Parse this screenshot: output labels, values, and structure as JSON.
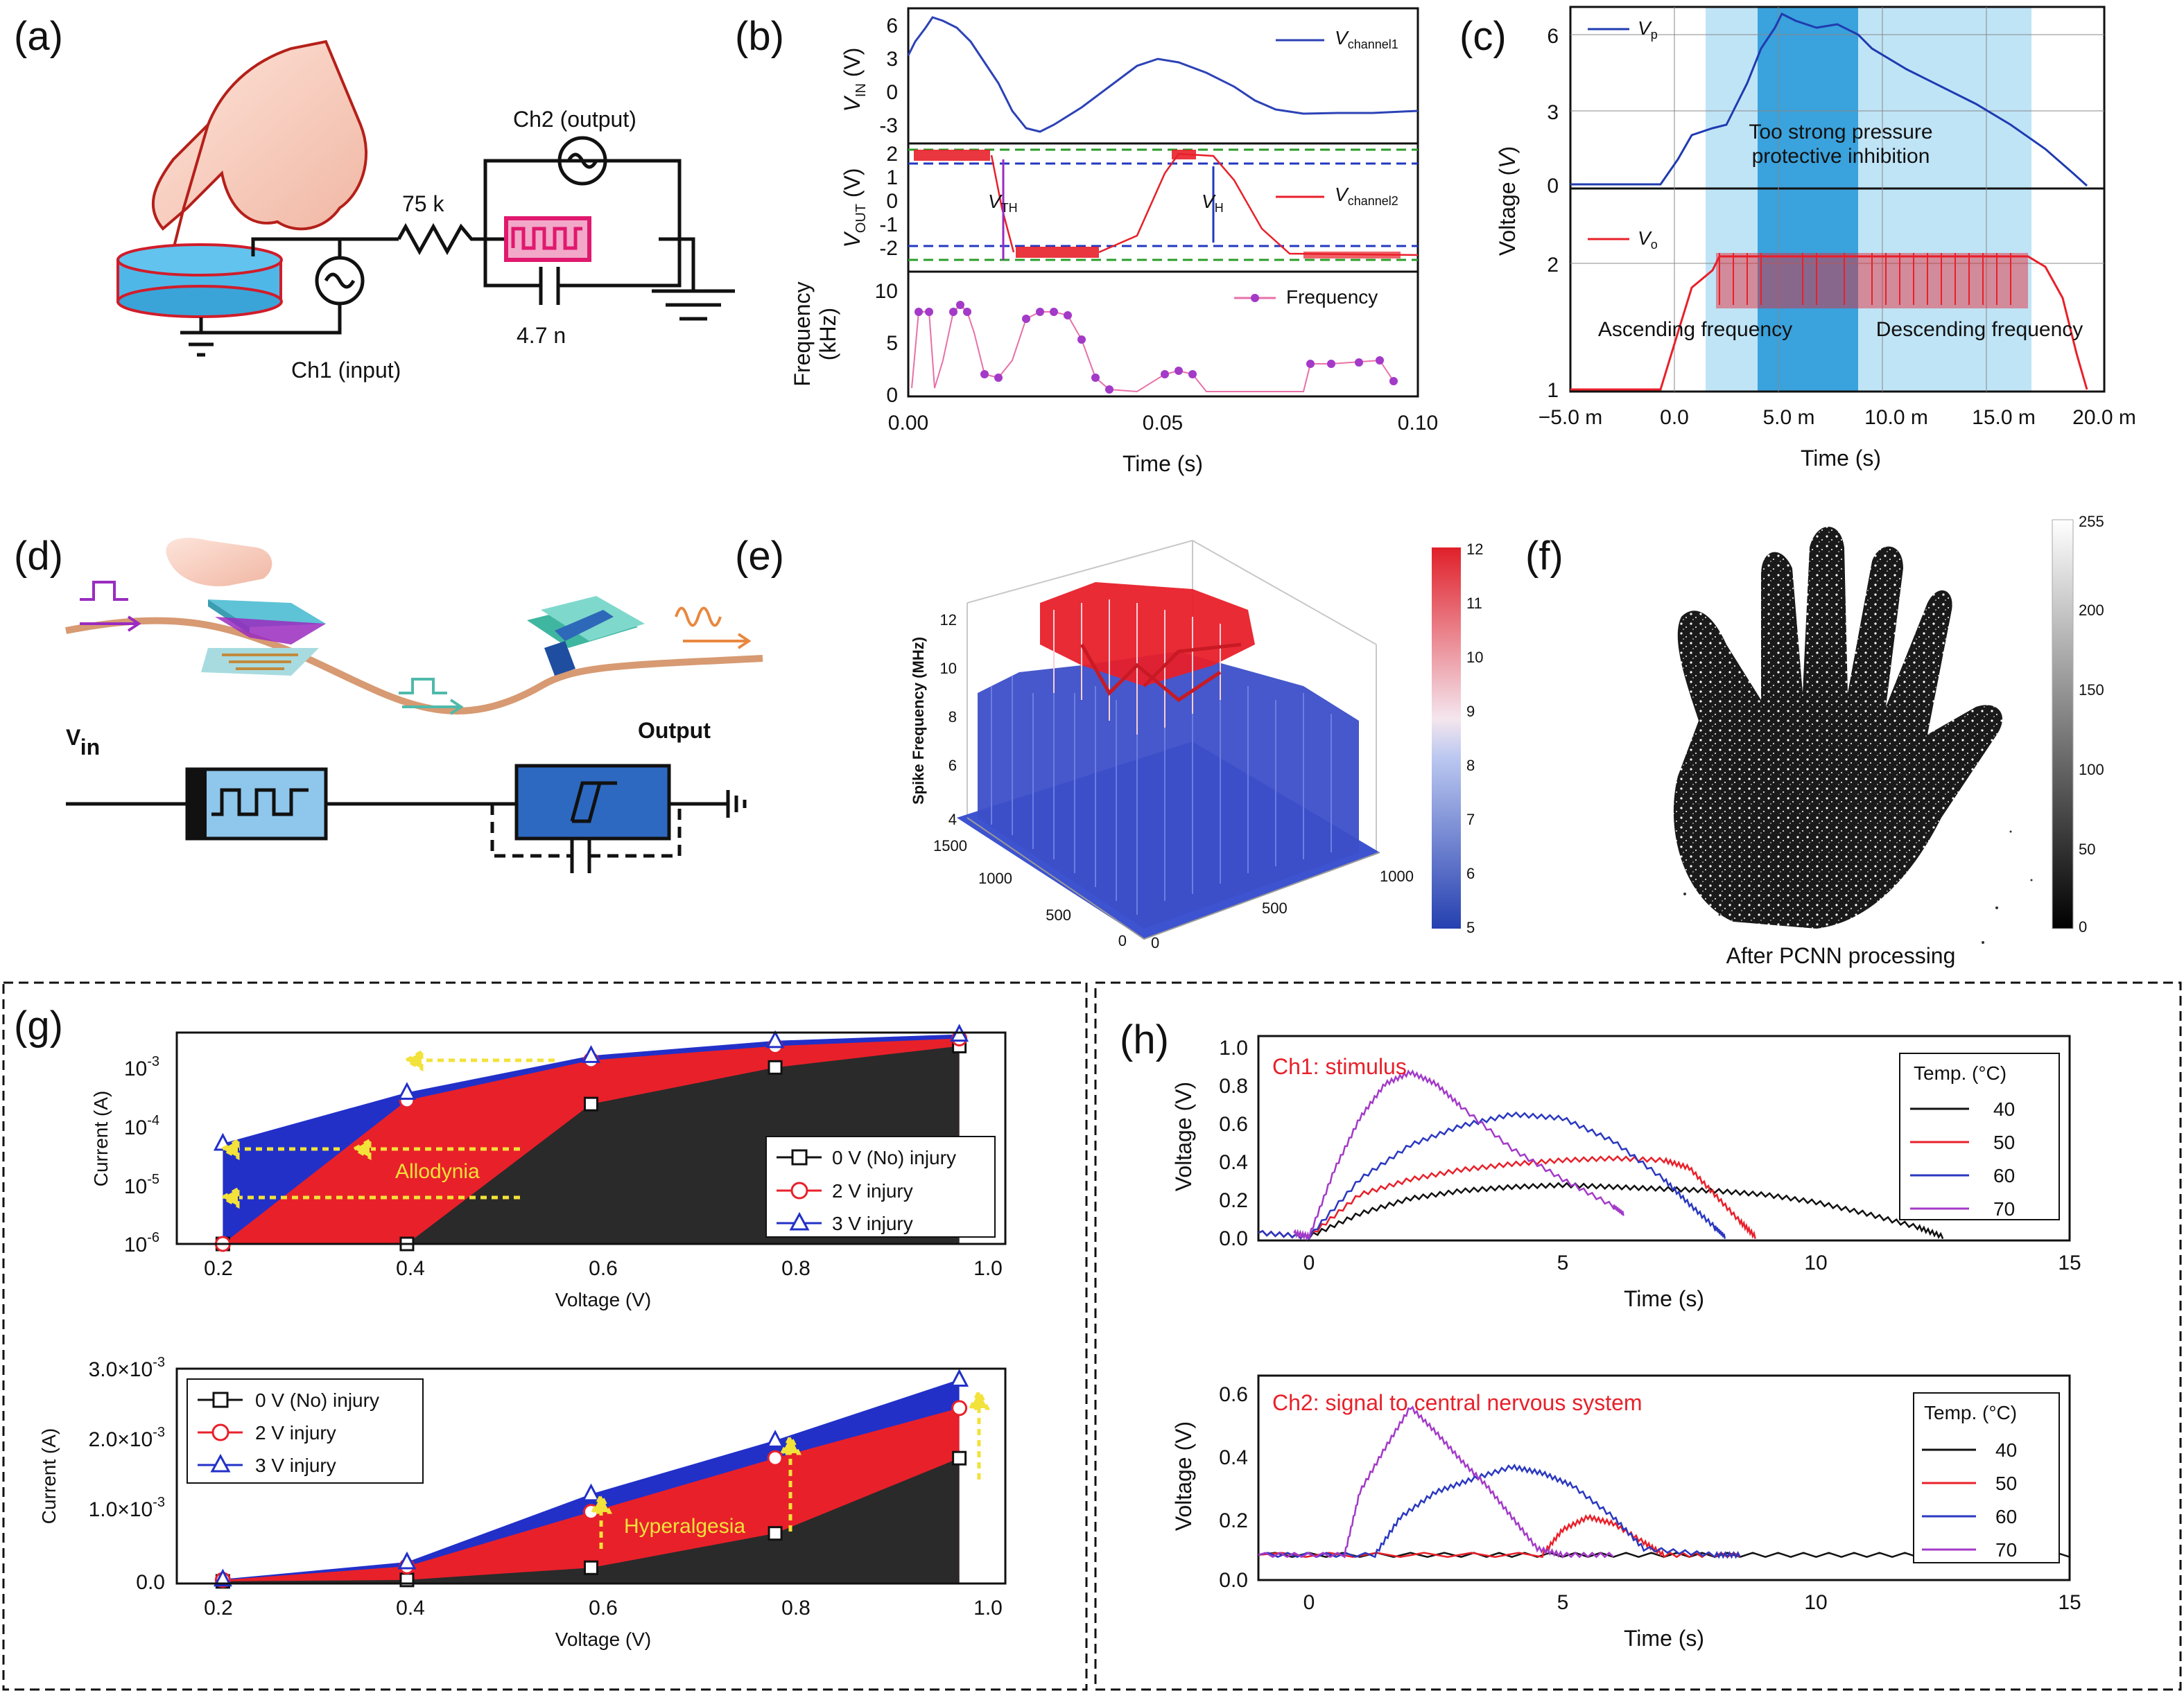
{
  "panels": {
    "a": {
      "label": "(a)",
      "ch2": "Ch2 (output)",
      "resistor": "75 k",
      "capacitor": "4.7 n",
      "ch1": "Ch1 (input)"
    },
    "b": {
      "label": "(b)",
      "top_ylabel_main": "V",
      "top_ylabel_sub": "IN",
      "top_ylabel_unit": " (V)",
      "top_yticks": [
        "6",
        "3",
        "0",
        "-3"
      ],
      "top_legend_main": "V",
      "top_legend_sub": "channel1",
      "mid_ylabel_main": "V",
      "mid_ylabel_sub": "OUT",
      "mid_ylabel_unit": " (V)",
      "mid_yticks": [
        "2",
        "1",
        "0",
        "-1",
        "-2"
      ],
      "vth_main": "V",
      "vth_sub": "TH",
      "vh_main": "V",
      "vh_sub": "H",
      "mid_legend_main": "V",
      "mid_legend_sub": "channel2",
      "bot_ylabel_1": "Frequency",
      "bot_ylabel_2": "(kHz)",
      "bot_yticks": [
        "10",
        "5",
        "0"
      ],
      "bot_legend": "Frequency",
      "xticks": [
        "0.00",
        "0.05",
        "0.10"
      ],
      "xlabel": "Time (s)"
    },
    "c": {
      "label": "(c)",
      "top_yticks": [
        "6",
        "3",
        "0"
      ],
      "bot_yticks": [
        "2",
        "1"
      ],
      "ylabel_main": "Voltage (",
      "ylabel_italic": "V",
      "ylabel_end": ")",
      "legend_top_main": "V",
      "legend_top_sub": "p",
      "legend_bot_main": "V",
      "legend_bot_sub": "o",
      "annotation_1": "Too strong pressure",
      "annotation_2": "protective inhibition",
      "ascending": "Ascending frequency",
      "descending": "Descending frequency",
      "xticks": [
        "−5.0 m",
        "0.0",
        "5.0 m",
        "10.0 m",
        "15.0 m",
        "20.0 m"
      ],
      "xlabel": "Time (s)"
    },
    "d": {
      "label": "(d)",
      "vin_main": "V",
      "vin_sub": "in",
      "output": "Output"
    },
    "e": {
      "label": "(e)",
      "zlabel": "Spike Frequency (MHz)",
      "zticks": [
        "12",
        "10",
        "8",
        "6",
        "4"
      ],
      "left_ticks": [
        "1500",
        "1000",
        "500",
        "0"
      ],
      "right_ticks": [
        "1000",
        "500",
        "0"
      ],
      "colorbar_ticks": [
        "12",
        "11",
        "10",
        "9",
        "8",
        "7",
        "6",
        "5"
      ]
    },
    "f": {
      "label": "(f)",
      "caption": "After PCNN processing",
      "colorbar_ticks": [
        "255",
        "200",
        "150",
        "100",
        "50",
        "0"
      ]
    },
    "g": {
      "label": "(g)",
      "top_ylabel": "Current (A)",
      "top_yticks": [
        "10",
        "10",
        "10",
        "10"
      ],
      "top_yexp": [
        "-3",
        "-4",
        "-5",
        "-6"
      ],
      "top_xticks": [
        "0.2",
        "0.4",
        "0.6",
        "0.8",
        "1.0"
      ],
      "top_xlabel": "Voltage (V)",
      "allodynia": "Allodynia",
      "legend": [
        "0 V (No) injury",
        "2 V injury",
        "3 V injury"
      ],
      "bot_ylabel": "Current (A)",
      "bot_yticks": [
        "3.0×10",
        "2.0×10",
        "1.0×10",
        "0.0"
      ],
      "bot_yexp": [
        "-3",
        "-3",
        "-3",
        ""
      ],
      "bot_xticks": [
        "0.2",
        "0.4",
        "0.6",
        "0.8",
        "1.0"
      ],
      "bot_xlabel": "Voltage (V)",
      "hyperalgesia": "Hyperalgesia"
    },
    "h": {
      "label": "(h)",
      "top_title": "Ch1: stimulus",
      "bot_title": "Ch2: signal to central nervous system",
      "top_yticks": [
        "1.0",
        "0.8",
        "0.6",
        "0.4",
        "0.2",
        "0.0"
      ],
      "bot_yticks": [
        "0.6",
        "0.4",
        "0.2",
        "0.0"
      ],
      "ylabel": "Voltage (V)",
      "xticks": [
        "0",
        "5",
        "10",
        "15"
      ],
      "xlabel": "Time (s)",
      "legend_title": "Temp. (°C)",
      "legend": [
        "40",
        "50",
        "60",
        "70"
      ]
    }
  },
  "chart_data": [
    {
      "type": "area",
      "panel": "g-top",
      "xlabel": "Voltage (V)",
      "ylabel": "Current (A)",
      "yscale": "log",
      "ylim": [
        1e-06,
        0.003
      ],
      "xlim": [
        0.15,
        1.05
      ],
      "series": [
        {
          "name": "0 V (No) injury",
          "x": [
            0.2,
            0.4,
            0.6,
            0.8,
            1.0
          ],
          "y": [
            1e-06,
            1e-06,
            0.0002,
            0.0008,
            0.0018
          ],
          "color": "#222222"
        },
        {
          "name": "2 V injury",
          "x": [
            0.2,
            0.4,
            0.6,
            0.8,
            1.0
          ],
          "y": [
            1e-06,
            0.00023,
            0.00105,
            0.0018,
            0.0024
          ],
          "color": "#e8202a"
        },
        {
          "name": "3 V injury",
          "x": [
            0.2,
            0.4,
            0.6,
            0.8,
            1.0
          ],
          "y": [
            4.5e-05,
            0.00031,
            0.00125,
            0.0022,
            0.0028
          ],
          "color": "#2230c8"
        }
      ]
    },
    {
      "type": "area",
      "panel": "g-bottom",
      "xlabel": "Voltage (V)",
      "ylabel": "Current (A)",
      "ylim": [
        0,
        0.003
      ],
      "xlim": [
        0.15,
        1.05
      ],
      "series": [
        {
          "name": "0 V (No) injury",
          "x": [
            0.2,
            0.4,
            0.6,
            0.8,
            1.0
          ],
          "y": [
            3e-05,
            5e-05,
            0.00022,
            0.0007,
            0.00175
          ],
          "color": "#222222"
        },
        {
          "name": "2 V injury",
          "x": [
            0.2,
            0.4,
            0.6,
            0.8,
            1.0
          ],
          "y": [
            5e-05,
            0.00024,
            0.001,
            0.00175,
            0.00245
          ],
          "color": "#e8202a"
        },
        {
          "name": "3 V injury",
          "x": [
            0.2,
            0.4,
            0.6,
            0.8,
            1.0
          ],
          "y": [
            6e-05,
            0.0003,
            0.00125,
            0.002,
            0.00285
          ],
          "color": "#2230c8"
        }
      ]
    },
    {
      "type": "line",
      "panel": "h-top",
      "title": "Ch1: stimulus",
      "xlabel": "Time (s)",
      "ylabel": "Voltage (V)",
      "xlim": [
        -1,
        15
      ],
      "ylim": [
        -0.02,
        1.05
      ],
      "series": [
        {
          "name": "40",
          "color": "#111111",
          "x": [
            -1,
            0,
            1,
            2,
            3,
            4,
            5,
            6,
            7,
            8,
            9,
            10,
            11,
            12,
            12.5
          ],
          "y": [
            0.02,
            0.0,
            0.12,
            0.2,
            0.24,
            0.26,
            0.27,
            0.26,
            0.25,
            0.24,
            0.22,
            0.18,
            0.12,
            0.05,
            0.0
          ]
        },
        {
          "name": "50",
          "color": "#e8202a",
          "x": [
            -1,
            0,
            1,
            2,
            3,
            4,
            5,
            6,
            7,
            7.5,
            8,
            8.5,
            8.8
          ],
          "y": [
            0.02,
            0.0,
            0.22,
            0.3,
            0.35,
            0.38,
            0.4,
            0.41,
            0.4,
            0.36,
            0.22,
            0.08,
            0.0
          ]
        },
        {
          "name": "60",
          "color": "#2a38c0",
          "x": [
            -1,
            0,
            1,
            2,
            3,
            4,
            5,
            6,
            7,
            7.5,
            8,
            8.2
          ],
          "y": [
            0.02,
            0.0,
            0.3,
            0.48,
            0.58,
            0.64,
            0.62,
            0.5,
            0.3,
            0.17,
            0.05,
            0.0
          ]
        },
        {
          "name": "70",
          "color": "#a33ac8",
          "x": [
            -0.3,
            0,
            0.5,
            1,
            1.5,
            2,
            2.5,
            3,
            4,
            5,
            6,
            6.2
          ],
          "y": [
            0.02,
            0.0,
            0.35,
            0.62,
            0.8,
            0.86,
            0.8,
            0.68,
            0.46,
            0.3,
            0.16,
            0.12
          ]
        }
      ]
    },
    {
      "type": "line",
      "panel": "h-bottom",
      "title": "Ch2: signal to central nervous system",
      "xlabel": "Time (s)",
      "ylabel": "Voltage (V)",
      "xlim": [
        -1,
        15
      ],
      "ylim": [
        0,
        0.65
      ],
      "series": [
        {
          "name": "40",
          "color": "#111111",
          "x": [
            -1,
            3,
            6,
            9,
            12,
            15
          ],
          "y": [
            0.08,
            0.08,
            0.08,
            0.08,
            0.08,
            0.08
          ]
        },
        {
          "name": "50",
          "color": "#e8202a",
          "x": [
            -1,
            4.6,
            5.0,
            5.5,
            6.0,
            6.6,
            7.0,
            8.5
          ],
          "y": [
            0.08,
            0.08,
            0.16,
            0.2,
            0.18,
            0.12,
            0.08,
            0.08
          ]
        },
        {
          "name": "60",
          "color": "#2a38c0",
          "x": [
            -1,
            1.3,
            1.8,
            2.5,
            3.2,
            4,
            4.6,
            5.2,
            6,
            6.6,
            8,
            8.5
          ],
          "y": [
            0.08,
            0.08,
            0.2,
            0.28,
            0.32,
            0.36,
            0.34,
            0.3,
            0.2,
            0.1,
            0.08,
            0.08
          ]
        },
        {
          "name": "70",
          "color": "#a33ac8",
          "x": [
            -1,
            0.7,
            1.0,
            1.5,
            2,
            2.5,
            3,
            3.5,
            4,
            4.5,
            5,
            6
          ],
          "y": [
            0.08,
            0.08,
            0.28,
            0.42,
            0.55,
            0.47,
            0.38,
            0.3,
            0.2,
            0.1,
            0.08,
            0.08
          ]
        }
      ]
    }
  ]
}
